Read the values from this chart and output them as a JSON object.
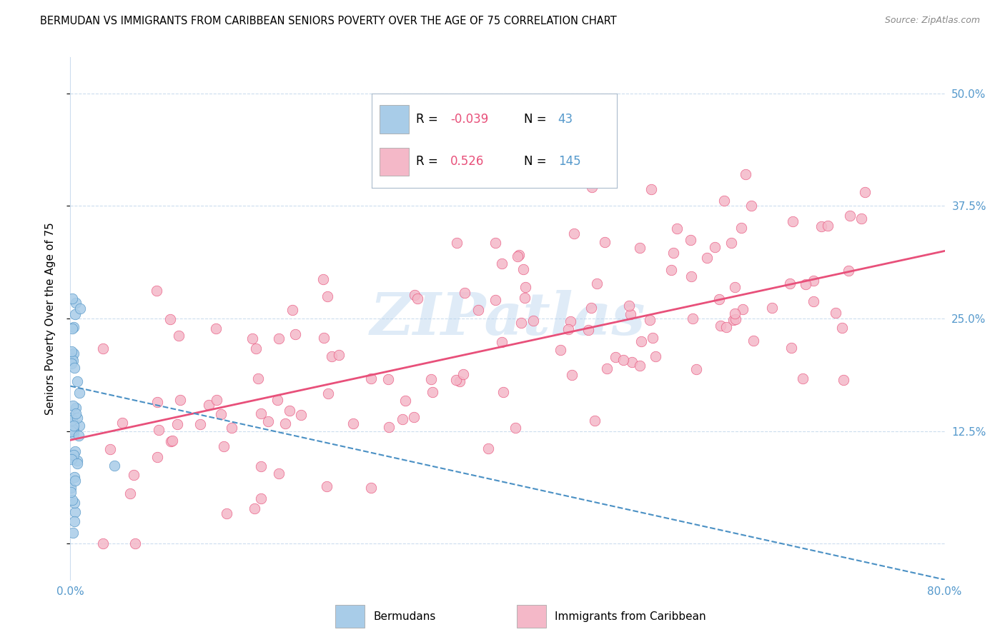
{
  "title": "BERMUDAN VS IMMIGRANTS FROM CARIBBEAN SENIORS POVERTY OVER THE AGE OF 75 CORRELATION CHART",
  "source": "Source: ZipAtlas.com",
  "ylabel": "Seniors Poverty Over the Age of 75",
  "xlim": [
    0.0,
    0.8
  ],
  "ylim": [
    -0.04,
    0.54
  ],
  "yticks": [
    0.0,
    0.125,
    0.25,
    0.375,
    0.5
  ],
  "ytick_labels": [
    "",
    "12.5%",
    "25.0%",
    "37.5%",
    "50.0%"
  ],
  "xticks": [
    0.0,
    0.1,
    0.2,
    0.3,
    0.4,
    0.5,
    0.6,
    0.7,
    0.8
  ],
  "xtick_labels": [
    "0.0%",
    "",
    "",
    "",
    "",
    "",
    "",
    "",
    "80.0%"
  ],
  "color_blue": "#a8cce8",
  "color_pink": "#f4b8c8",
  "color_blue_dark": "#4a90c4",
  "color_pink_dark": "#e8507a",
  "color_axis_label": "#5599cc",
  "watermark": "ZIPatlas",
  "bermudans_R": -0.039,
  "bermudans_N": 43,
  "caribbean_R": 0.526,
  "caribbean_N": 145,
  "pink_line_x0": 0.0,
  "pink_line_y0": 0.115,
  "pink_line_x1": 0.8,
  "pink_line_y1": 0.325,
  "blue_line_x0": 0.0,
  "blue_line_y0": 0.175,
  "blue_line_x1": 0.8,
  "blue_line_y1": -0.04
}
